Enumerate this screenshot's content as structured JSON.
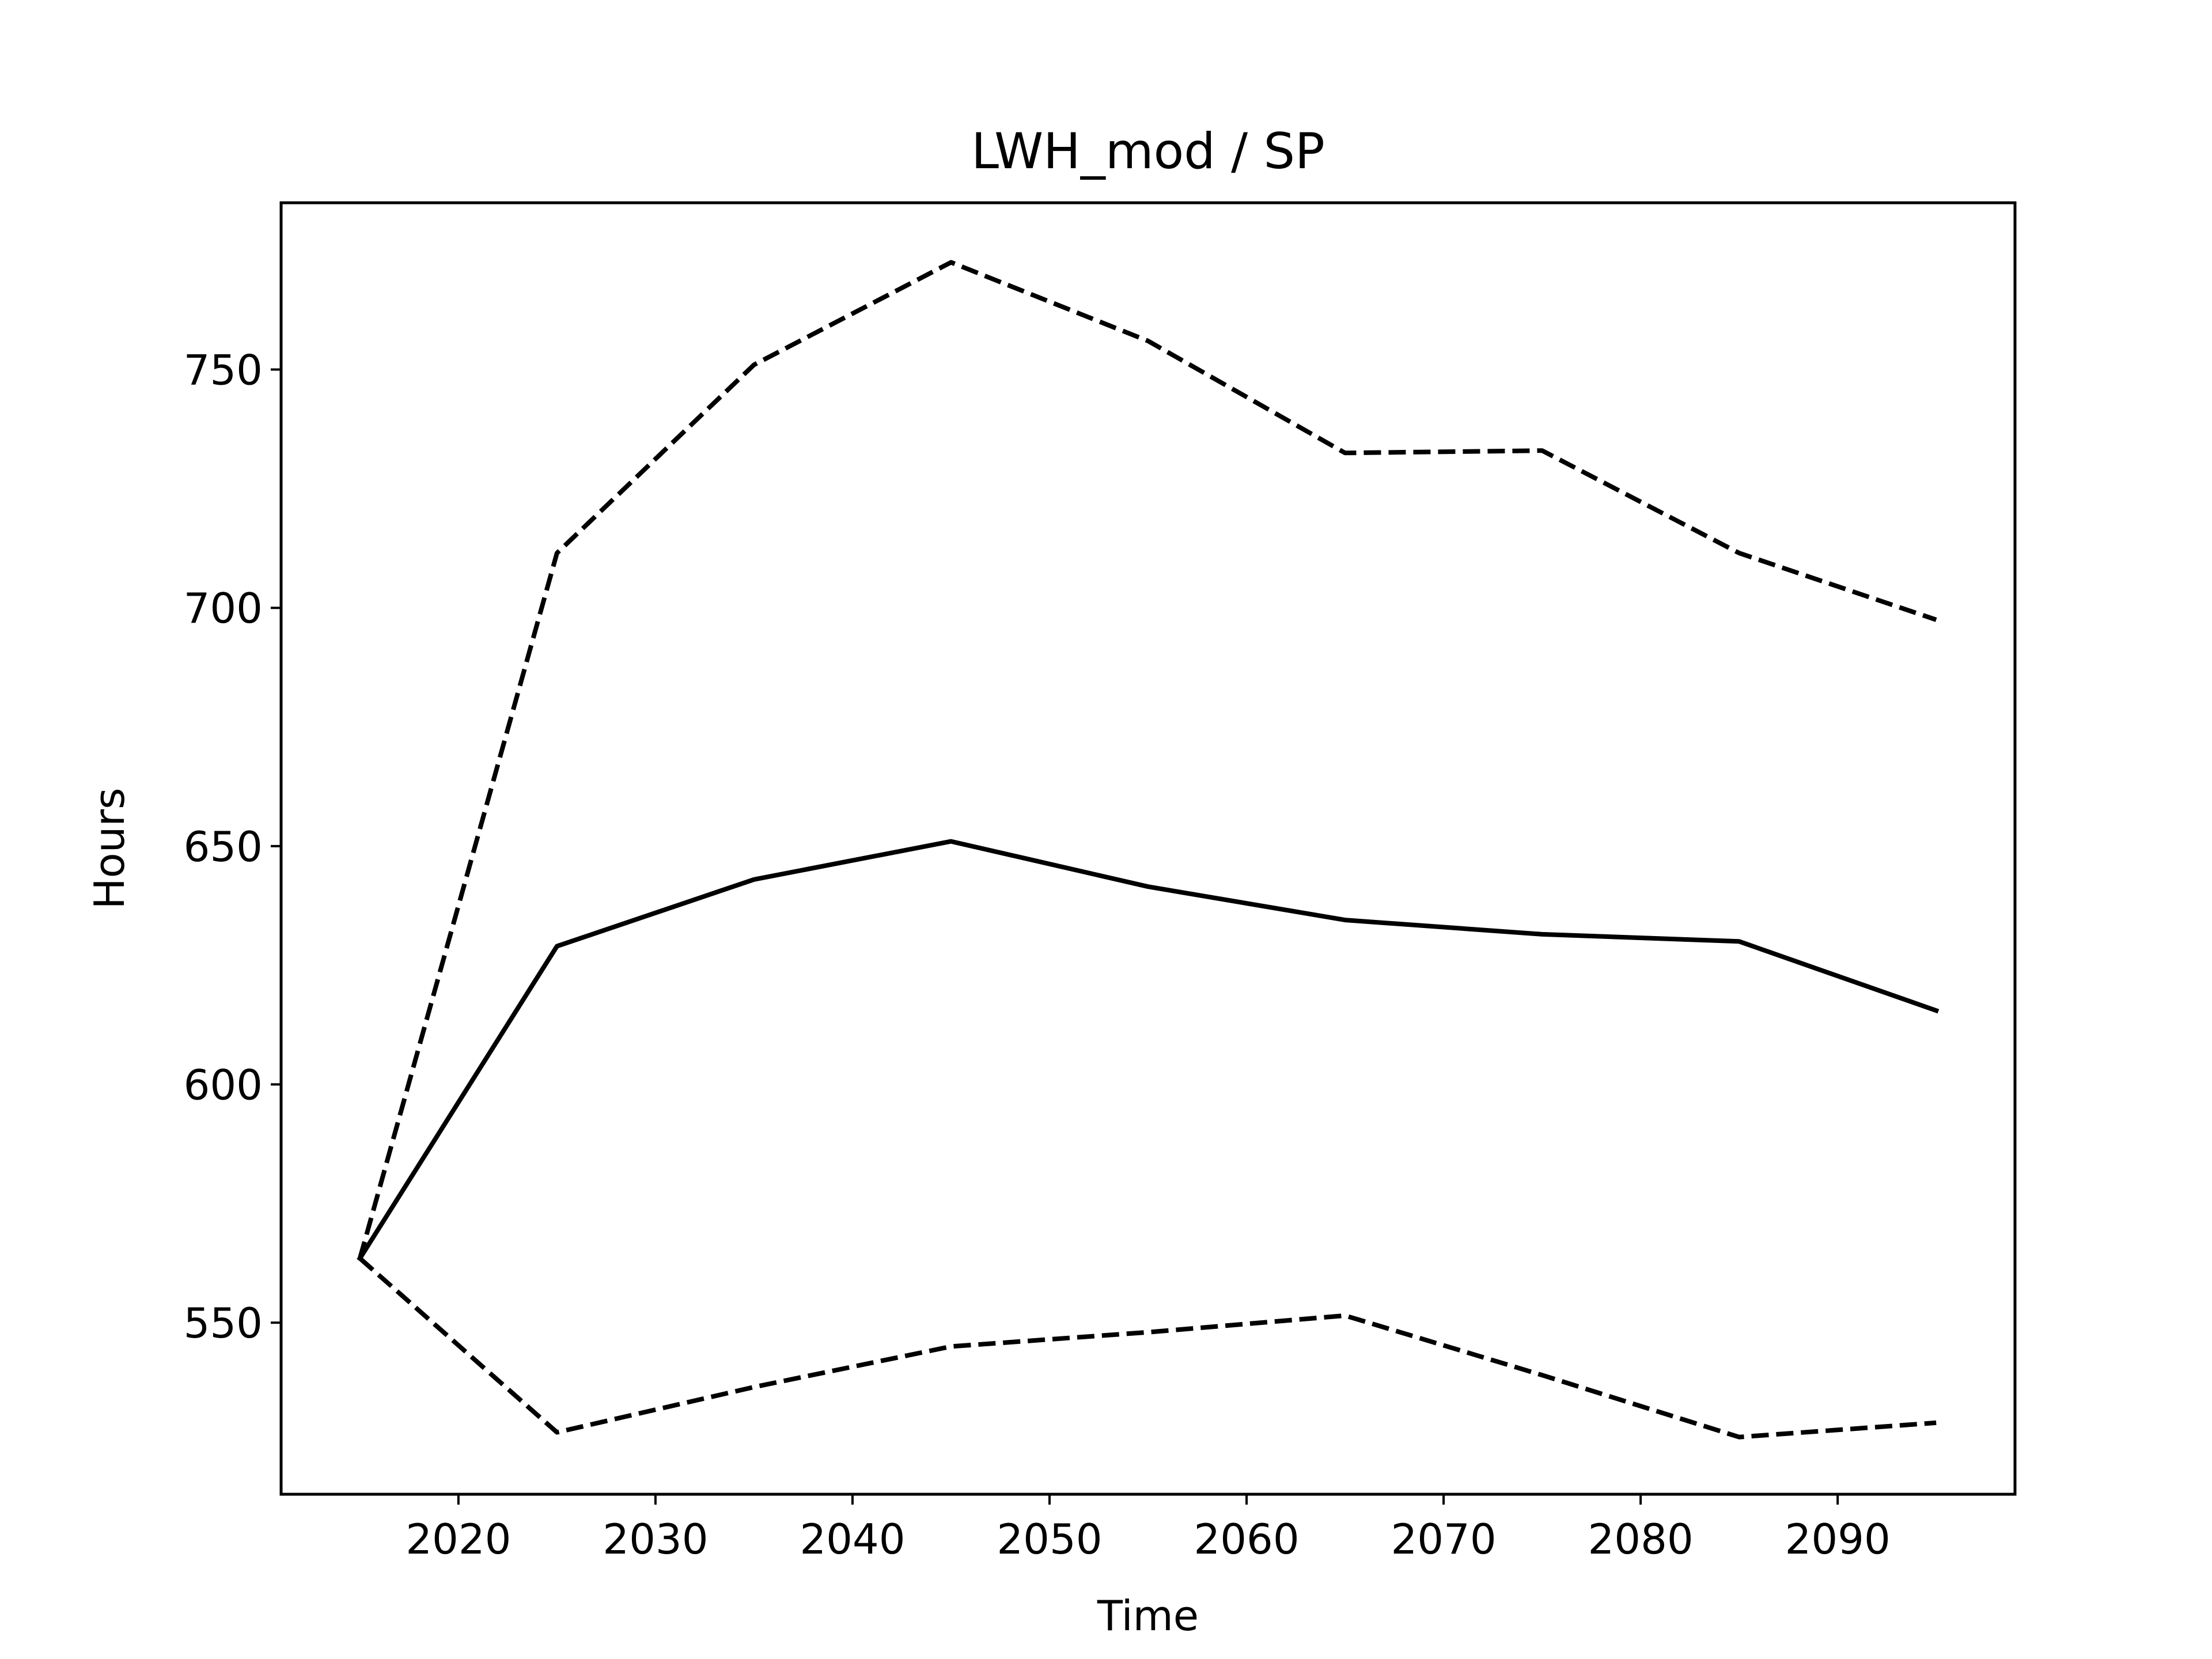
{
  "chart_data": {
    "type": "line",
    "title": "LWH_mod / SP",
    "xlabel": "Time",
    "ylabel": "Hours",
    "xlim": [
      2011,
      2099
    ],
    "ylim": [
      514,
      785
    ],
    "xticks": [
      2020,
      2030,
      2040,
      2050,
      2060,
      2070,
      2080,
      2090
    ],
    "yticks": [
      550,
      600,
      650,
      700,
      750
    ],
    "grid": false,
    "legend": "none",
    "x": [
      2015,
      2025,
      2035,
      2045,
      2055,
      2065,
      2075,
      2085,
      2095
    ],
    "series": [
      {
        "style": "solid",
        "color": "#000000",
        "values": [
          563.5,
          629,
          643,
          651,
          641.5,
          634.5,
          631.5,
          630,
          615.5
        ]
      },
      {
        "style": "dashed",
        "color": "#000000",
        "values": [
          563.5,
          711.5,
          751,
          772.5,
          756,
          732.5,
          733,
          711.5,
          697.5
        ]
      },
      {
        "style": "dashed",
        "color": "#000000",
        "values": [
          563.5,
          527,
          536.5,
          545,
          548,
          551.5,
          539,
          526,
          529
        ]
      }
    ]
  }
}
